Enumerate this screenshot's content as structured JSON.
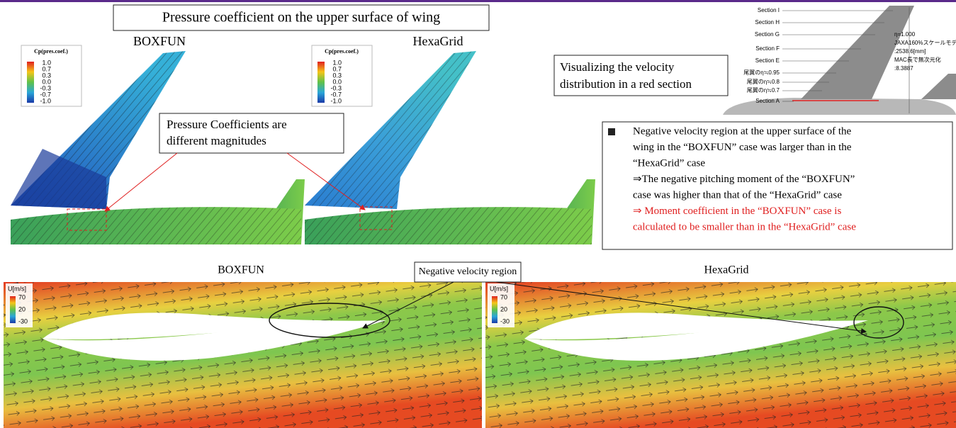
{
  "header": {
    "title": "Pressure coefficient on the upper surface of wing"
  },
  "top_panels": [
    {
      "label": "BOXFUN",
      "legend": {
        "title": "Cp(pres.coef.)",
        "ticks": [
          "1.0",
          "0.7",
          "0.3",
          "0.0",
          "-0.3",
          "-0.7",
          "-1.0"
        ]
      }
    },
    {
      "label": "HexaGrid",
      "legend": {
        "title": "Cp(pres.coef.)",
        "ticks": [
          "1.0",
          "0.7",
          "0.3",
          "0.0",
          "-0.3",
          "-0.7",
          "-1.0"
        ]
      }
    }
  ],
  "callout": {
    "lines": [
      "Pressure Coefficients are",
      "different magnitudes"
    ]
  },
  "section_diagram": {
    "sections": [
      "Section I",
      "Section H",
      "Section G",
      "Section F",
      "Section E",
      "尾翼のη≒0.95",
      "尾翼のη≒0.8",
      "尾翼のη≒0.7",
      "Section A"
    ],
    "notes": [
      "η=1.000",
      "JAXA160%スケールモデル",
      ":2538.6[mm]",
      "MAC長で無次元化",
      ":8.3887"
    ]
  },
  "velocity_callout": {
    "lines": [
      "Visualizing the velocity",
      "distribution in a red section"
    ]
  },
  "findings": {
    "lines": [
      "Negative velocity region at the upper surface of the",
      "wing in the “BOXFUN” case was larger than in the",
      "“HexaGrid” case",
      "⇒The negative pitching moment of the “BOXFUN”",
      "case was higher than that of the “HexaGrid” case"
    ],
    "highlight": [
      "⇒ Moment coefficient in the “BOXFUN” case is",
      "calculated to be smaller than in the “HexaGrid” case"
    ]
  },
  "bottom_panels": [
    {
      "label": "BOXFUN",
      "legend": {
        "title": "U[m/s]",
        "ticks": [
          "70",
          "20",
          "-30"
        ]
      }
    },
    {
      "label": "HexaGrid",
      "legend": {
        "title": "U[m/s]",
        "ticks": [
          "70",
          "20",
          "-30"
        ]
      }
    }
  ],
  "annotation": "Negative velocity region"
}
